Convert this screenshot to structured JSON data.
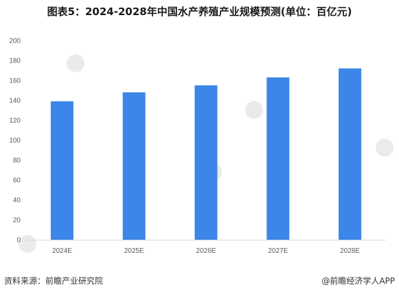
{
  "chart_data": {
    "type": "bar",
    "title": "图表5：2024-2028年中国水产养殖产业规模预测(单位：百亿元)",
    "categories": [
      "2024E",
      "2025E",
      "2026E",
      "2027E",
      "2028E"
    ],
    "values": [
      139,
      148,
      155,
      163,
      172
    ],
    "ylim": [
      0,
      200
    ],
    "yticks": [
      0,
      20,
      40,
      60,
      80,
      100,
      120,
      140,
      160,
      180,
      200
    ],
    "xlabel": "",
    "ylabel": "",
    "grid": false,
    "bar_color": "#3b86e8"
  },
  "footer": {
    "source": "资料来源：前瞻产业研究院",
    "credit": "@前瞻经济学人APP"
  }
}
